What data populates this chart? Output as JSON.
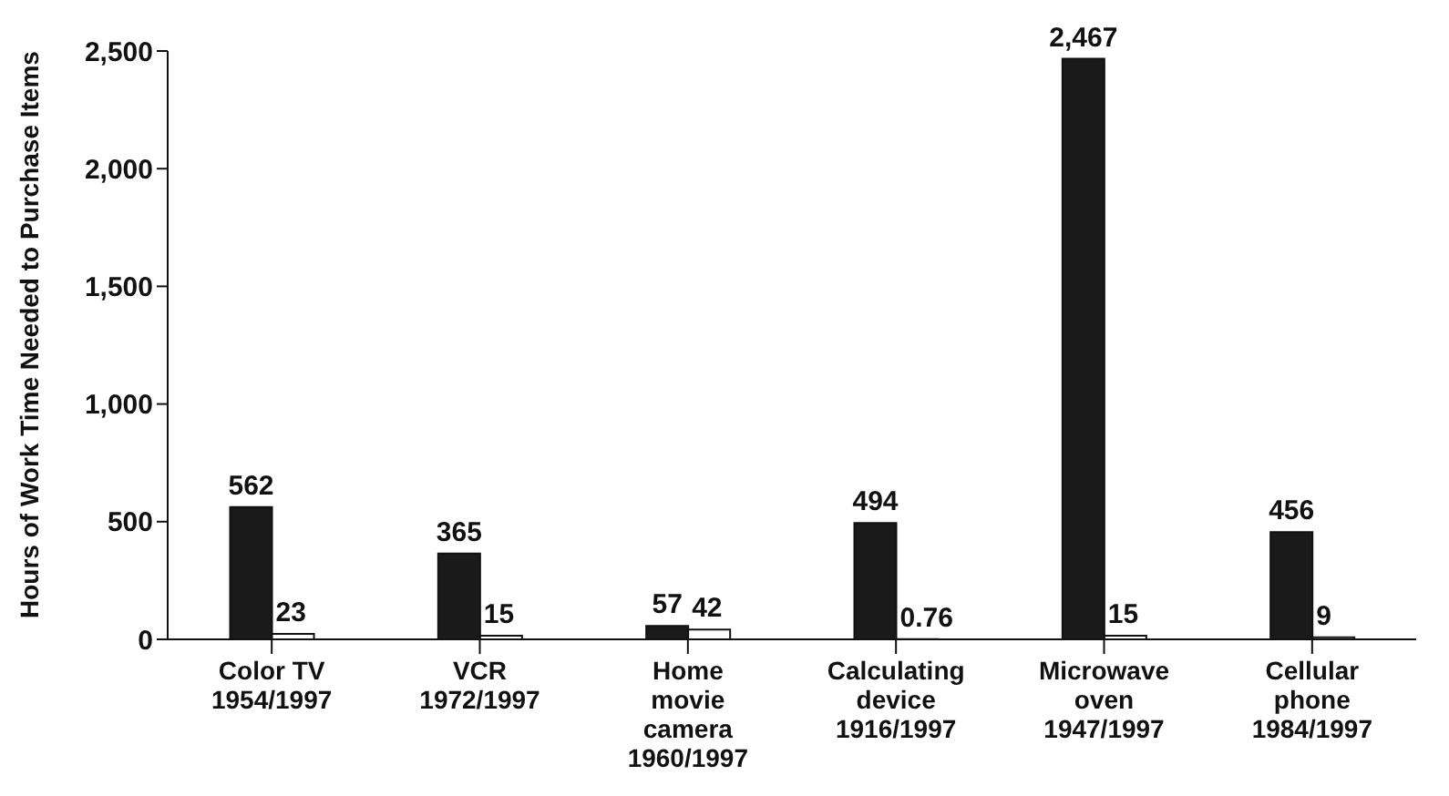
{
  "chart_data": {
    "type": "bar",
    "ylabel": "Hours of Work Time Needed to Purchase Items",
    "categories": [
      "Color TV\n1954/1997",
      "VCR\n1972/1997",
      "Home\nmovie\ncamera\n1960/1997",
      "Calculating\ndevice\n1916/1997",
      "Microwave\noven\n1947/1997",
      "Cellular\nphone\n1984/1997"
    ],
    "series": [
      {
        "color": "#1a1a1a",
        "values": [
          562,
          365,
          57,
          494,
          2467,
          456
        ],
        "value_labels": [
          "562",
          "365",
          "57",
          "494",
          "2,467",
          "456"
        ]
      },
      {
        "color": "#ffffff",
        "values": [
          23,
          15,
          42,
          0.76,
          15,
          9
        ],
        "value_labels": [
          "23",
          "15",
          "42",
          "0.76",
          "15",
          "9"
        ]
      }
    ],
    "ylim": [
      0,
      2500
    ],
    "yticks": [
      0,
      500,
      {
        "value": 1000,
        "label": "1,000"
      },
      {
        "value": 1500,
        "label": "1,500"
      },
      {
        "value": 2000,
        "label": "2,000"
      },
      {
        "value": 2500,
        "label": "2,500"
      }
    ],
    "grid": false,
    "legend": false
  }
}
